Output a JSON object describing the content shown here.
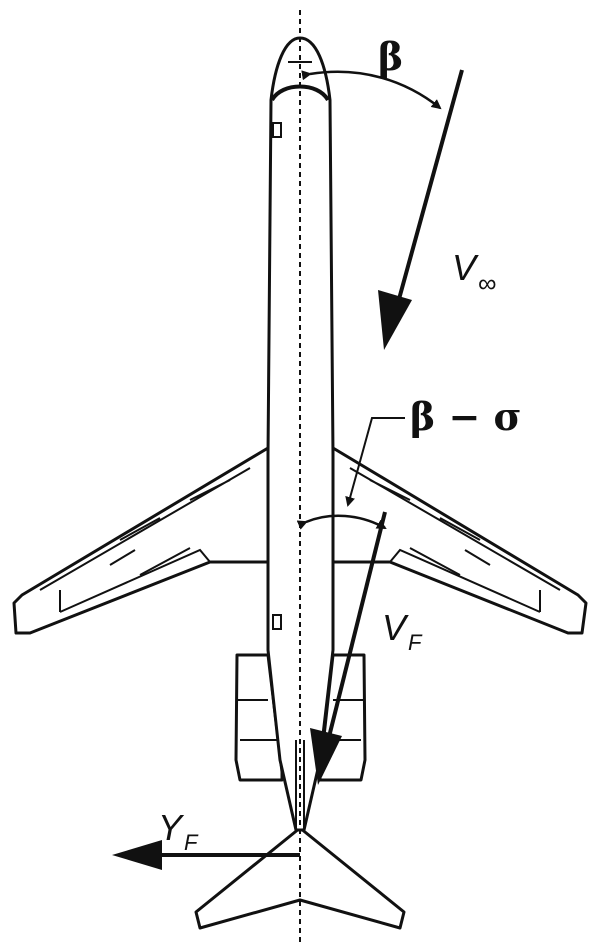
{
  "labels": {
    "beta": "β",
    "v_inf_symbol": "V",
    "v_inf_subscript": "∞",
    "beta_minus_sigma": "β − σ",
    "v_f_symbol": "V",
    "v_f_subscript": "F",
    "y_f_symbol": "Y",
    "y_f_subscript": "F"
  },
  "colors": {
    "ink": "#111111",
    "background": "#ffffff"
  }
}
